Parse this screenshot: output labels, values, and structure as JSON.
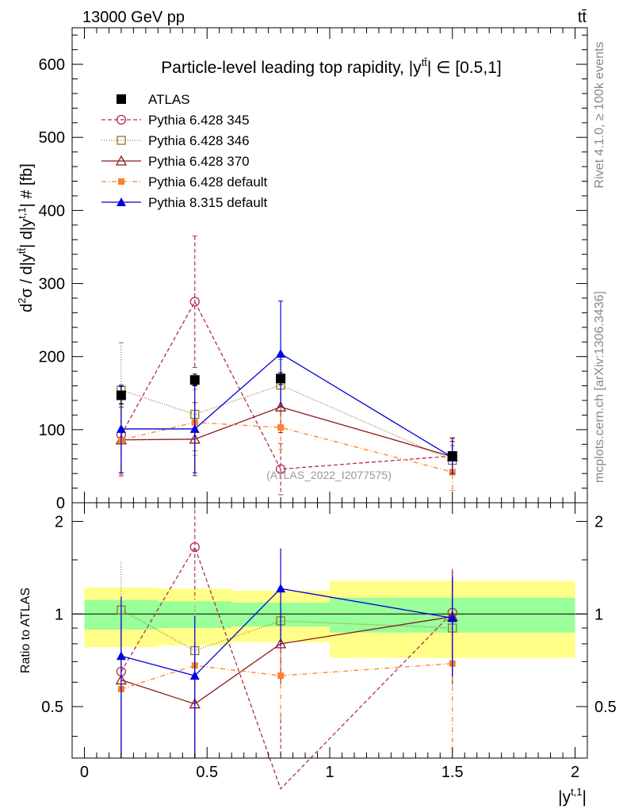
{
  "header": {
    "energy_label": "13000 GeV pp",
    "process_label": "tt̄"
  },
  "side_labels": {
    "rivet": "Rivet 4.1.0, ≥ 100k events",
    "source": "mcplots.cern.ch [arXiv:1306.3436]"
  },
  "watermark": "(ATLAS_2022_I2077575)",
  "chart_data": {
    "type": "line",
    "title": "Particle-level leading top rapidity, |y^{tt̄}| ∈ [0.5,1]",
    "title_parts": {
      "main": "Particle-level leading top rapidity, |y",
      "sup": "tt̄",
      "tail": "| ∈ [0.5,1]"
    },
    "ylabel": "d²σ / d|y^{tt̄}| d|y^{t,1}| # [fb]",
    "ylabel_parts": {
      "a": "d",
      "b": "2",
      "c": "σ / d|y",
      "d": "tt̄",
      "e": "| d|y",
      "f": "t,1",
      "g": "| # [fb]"
    },
    "xlabel": "|y^{t,1}|",
    "xlabel_parts": {
      "main": "|y",
      "sup": "t,1",
      "tail": "|"
    },
    "ratio_ylabel": "Ratio to ATLAS",
    "xlim": [
      -0.05,
      2.05
    ],
    "ylim": [
      0,
      650
    ],
    "ratio_ylim": [
      0.34,
      2.3
    ],
    "x_ticks": [
      0,
      0.5,
      1,
      1.5,
      2
    ],
    "x_tick_labels": [
      "0",
      "0.5",
      "1",
      "1.5",
      "2"
    ],
    "y_ticks": [
      0,
      100,
      200,
      300,
      400,
      500,
      600
    ],
    "y_tick_labels": [
      "0",
      "100",
      "200",
      "300",
      "400",
      "500",
      "600"
    ],
    "ratio_ticks": [
      0.5,
      1,
      2
    ],
    "ratio_tick_labels": [
      "0.5",
      "1",
      "2"
    ],
    "bin_edges": [
      0,
      0.3,
      0.6,
      1.0,
      2.0
    ],
    "x": [
      0.15,
      0.45,
      0.8,
      1.5
    ],
    "band_inner": [
      [
        0.89,
        1.11
      ],
      [
        0.9,
        1.1
      ],
      [
        0.91,
        1.09
      ],
      [
        0.87,
        1.13
      ]
    ],
    "band_outer": [
      [
        0.78,
        1.22
      ],
      [
        0.79,
        1.21
      ],
      [
        0.81,
        1.19
      ],
      [
        0.72,
        1.28
      ]
    ],
    "series": [
      {
        "name": "ATLAS",
        "color": "#000000",
        "dash": "",
        "marker": "square-filled",
        "values": [
          147,
          168,
          170,
          64
        ],
        "err": [
          12,
          8,
          8,
          5
        ],
        "ratio": [
          1,
          1,
          1,
          1
        ]
      },
      {
        "name": "Pythia 6.428 345",
        "color": "#b03050",
        "dash": "5,3",
        "marker": "circle-open",
        "values": [
          93,
          275,
          46,
          64
        ],
        "err": [
          55,
          90,
          35,
          25
        ],
        "ratio": [
          0.65,
          1.65,
          0.27,
          1.01
        ]
      },
      {
        "name": "Pythia 6.428 346",
        "color": "#8b7a2a",
        "dash": "1,2",
        "marker": "square-open",
        "values": [
          154,
          121,
          161,
          58
        ],
        "err": [
          65,
          50,
          35,
          20
        ],
        "ratio": [
          1.03,
          0.76,
          0.95,
          0.9
        ]
      },
      {
        "name": "Pythia 6.428 370",
        "color": "#8b1a1a",
        "dash": "",
        "marker": "triangle-open",
        "values": [
          86,
          87,
          131,
          63
        ],
        "err": [
          45,
          50,
          35,
          25
        ],
        "ratio": [
          0.61,
          0.51,
          0.8,
          0.98
        ]
      },
      {
        "name": "Pythia 6.428 default",
        "color": "#ff7f2a",
        "dash": "6,3,1,3",
        "marker": "square-small",
        "values": [
          86,
          110,
          103,
          42
        ],
        "err": [
          50,
          45,
          30,
          25
        ],
        "ratio": [
          0.57,
          0.68,
          0.63,
          0.69
        ]
      },
      {
        "name": "Pythia 8.315 default",
        "color": "#0000dd",
        "dash": "",
        "marker": "triangle-filled",
        "values": [
          101,
          101,
          204,
          62
        ],
        "err": [
          60,
          60,
          72,
          22
        ],
        "ratio": [
          0.73,
          0.63,
          1.21,
          0.97
        ]
      }
    ]
  }
}
